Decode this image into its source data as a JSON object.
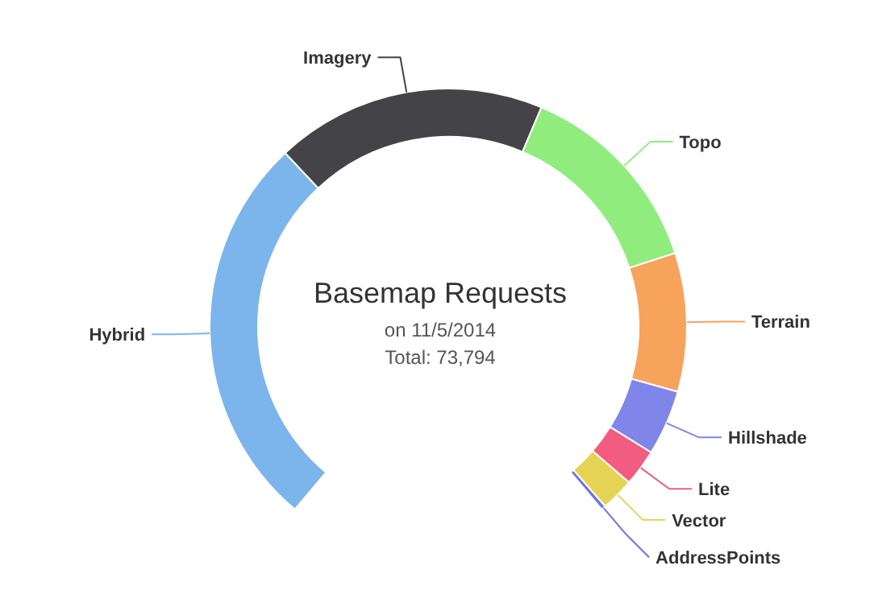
{
  "chart_data": {
    "type": "donut",
    "title": "Basemap Requests",
    "subtitle": "on 11/5/2014",
    "annotations": [
      "Total: 73,794"
    ],
    "categories": [
      "Hybrid",
      "Imagery",
      "Topo",
      "Terrain",
      "Hillshade",
      "Lite",
      "Vector",
      "AddressPoints"
    ],
    "values": [
      34.6,
      23.6,
      17.5,
      12.1,
      5.7,
      3.2,
      2.9,
      0.4
    ],
    "colors": [
      "#7cb5ec",
      "#434348",
      "#90ed7d",
      "#f7a35c",
      "#8085e9",
      "#f15c80",
      "#e4d354",
      "#6f73e0"
    ],
    "legend": false
  }
}
